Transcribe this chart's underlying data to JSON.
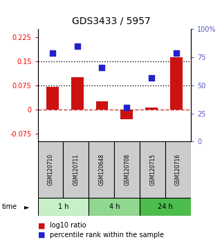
{
  "title": "GDS3433 / 5957",
  "samples": [
    "GSM120710",
    "GSM120711",
    "GSM120648",
    "GSM120708",
    "GSM120715",
    "GSM120716"
  ],
  "log10_ratio": [
    0.07,
    0.1,
    0.025,
    -0.03,
    0.005,
    0.163
  ],
  "percentile_rank": [
    0.79,
    0.85,
    0.66,
    0.3,
    0.57,
    0.79
  ],
  "time_groups": [
    {
      "label": "1 h",
      "samples": [
        0,
        1
      ],
      "color": "#c8f0c8"
    },
    {
      "label": "4 h",
      "samples": [
        2,
        3
      ],
      "color": "#90d890"
    },
    {
      "label": "24 h",
      "samples": [
        4,
        5
      ],
      "color": "#4cbc4c"
    }
  ],
  "left_ylim": [
    -0.1,
    0.25
  ],
  "right_ylim": [
    0,
    1.0
  ],
  "left_yticks": [
    -0.075,
    0,
    0.075,
    0.15,
    0.225
  ],
  "right_yticks": [
    0,
    0.25,
    0.5,
    0.75,
    1.0
  ],
  "right_yticklabels": [
    "0",
    "25",
    "50",
    "75",
    "100%"
  ],
  "left_yticklabels": [
    "-0.075",
    "0",
    "0.075",
    "0.15",
    "0.225"
  ],
  "hlines": [
    0.075,
    0.15
  ],
  "bar_color": "#cc1111",
  "dot_color": "#2222cc",
  "zero_line_color": "#cc3333",
  "dot_size": 40,
  "bar_width": 0.5,
  "sample_box_color": "#cccccc",
  "background_color": "#ffffff"
}
